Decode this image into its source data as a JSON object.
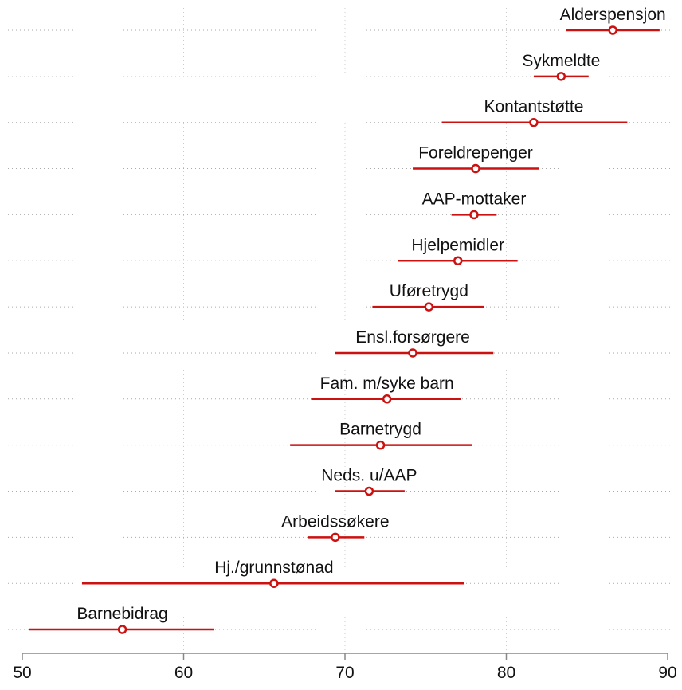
{
  "chart_data": {
    "type": "dot",
    "categories": [
      "Alderspensjon",
      "Sykmeldte",
      "Kontantstøtte",
      "Foreldrepenger",
      "AAP-mottaker",
      "Hjelpemidler",
      "Uføretrygd",
      "Ensl.forsørgere",
      "Fam. m/syke barn",
      "Barnetrygd",
      "Neds. u/AAP",
      "Arbeidssøkere",
      "Hj./grunnstønad",
      "Barnebidrag"
    ],
    "series": [
      {
        "color": "#cc1111",
        "values": [
          86.6,
          83.4,
          81.7,
          78.1,
          78.0,
          77.0,
          75.2,
          74.2,
          72.6,
          72.2,
          71.5,
          69.4,
          65.6,
          56.2
        ],
        "lower": [
          83.7,
          81.7,
          76.0,
          74.2,
          76.6,
          73.3,
          71.7,
          69.4,
          67.9,
          66.6,
          69.4,
          67.7,
          53.7,
          50.4
        ],
        "upper": [
          89.5,
          85.1,
          87.5,
          82.0,
          79.4,
          80.7,
          78.6,
          79.2,
          77.2,
          77.9,
          73.7,
          71.2,
          77.4,
          61.9
        ]
      }
    ],
    "xlim": [
      50,
      90
    ],
    "xticks": [
      50,
      60,
      70,
      80,
      90
    ],
    "grid": true
  }
}
